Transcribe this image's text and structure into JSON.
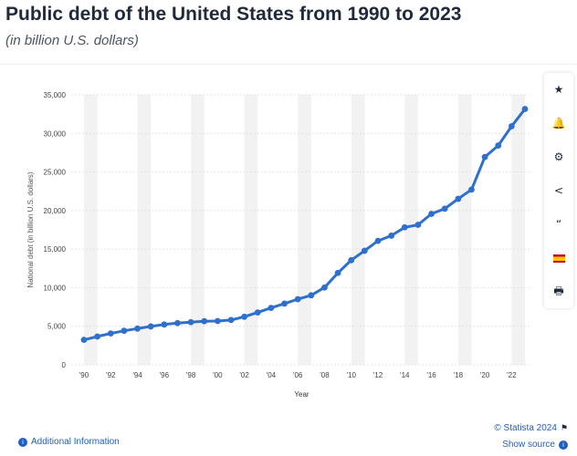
{
  "header": {
    "title": "Public debt of the United States from 1990 to 2023",
    "subtitle": "(in billion U.S. dollars)"
  },
  "toolbar": {
    "items": [
      {
        "icon": "star-icon",
        "glyph": "★"
      },
      {
        "icon": "bell-icon",
        "glyph": "🔔"
      },
      {
        "icon": "gear-icon",
        "glyph": "⚙"
      },
      {
        "icon": "share-icon",
        "glyph": "<"
      },
      {
        "icon": "quote-icon",
        "glyph": "“"
      },
      {
        "icon": "spain-flag-icon",
        "glyph": ""
      },
      {
        "icon": "print-icon",
        "glyph": "🖶"
      }
    ]
  },
  "footer": {
    "additional_info": "Additional Information",
    "copyright": "© Statista 2024",
    "show_source": "Show source"
  },
  "colors": {
    "line": "#2f6fce",
    "band": "#f2f2f2",
    "grid": "#dcdcdc",
    "link": "#1f5fbf"
  },
  "chart_data": {
    "type": "line",
    "xlabel": "Year",
    "ylabel": "National debt (in billion U.S. dollars)",
    "ylim": [
      0,
      35000
    ],
    "yticks": [
      0,
      5000,
      10000,
      15000,
      20000,
      25000,
      30000,
      35000
    ],
    "ytick_labels": [
      "0",
      "5,000",
      "10,000",
      "15,000",
      "20,000",
      "25,000",
      "30,000",
      "35,000"
    ],
    "xticks": [
      1990,
      1992,
      1994,
      1996,
      1998,
      2000,
      2002,
      2004,
      2006,
      2008,
      2010,
      2012,
      2014,
      2016,
      2018,
      2020,
      2022
    ],
    "xtick_labels": [
      "'90",
      "'92",
      "'94",
      "'96",
      "'98",
      "'00",
      "'02",
      "'04",
      "'06",
      "'08",
      "'10",
      "'12",
      "'14",
      "'16",
      "'18",
      "'20",
      "'22"
    ],
    "grid": true,
    "x": [
      1990,
      1991,
      1992,
      1993,
      1994,
      1995,
      1996,
      1997,
      1998,
      1999,
      2000,
      2001,
      2002,
      2003,
      2004,
      2005,
      2006,
      2007,
      2008,
      2009,
      2010,
      2011,
      2012,
      2013,
      2014,
      2015,
      2016,
      2017,
      2018,
      2019,
      2020,
      2021,
      2022,
      2023
    ],
    "values": [
      3233,
      3665,
      4065,
      4411,
      4693,
      4974,
      5225,
      5413,
      5526,
      5656,
      5674,
      5807,
      6228,
      6783,
      7379,
      7933,
      8507,
      9008,
      10025,
      11910,
      13562,
      14790,
      16066,
      16738,
      17824,
      18151,
      19573,
      20245,
      21516,
      22719,
      26945,
      28428,
      30929,
      33167
    ]
  }
}
